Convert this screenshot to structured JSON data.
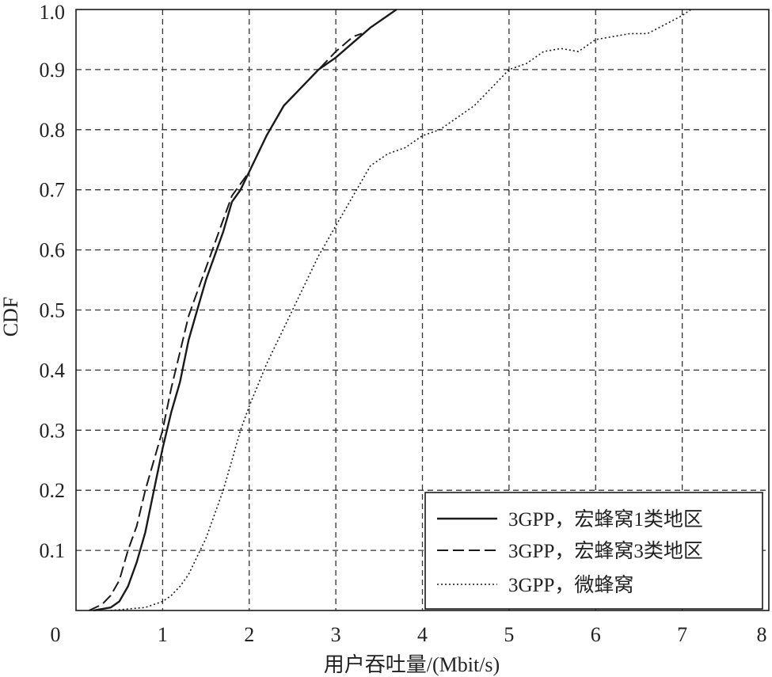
{
  "chart_data": {
    "type": "line",
    "title": "",
    "xlabel": "用户吞吐量/(Mbit/s)",
    "ylabel": "CDF",
    "xlim": [
      0,
      8
    ],
    "ylim": [
      0,
      1
    ],
    "x_ticks": [
      "0",
      "1",
      "2",
      "3",
      "4",
      "5",
      "6",
      "7",
      "8"
    ],
    "y_ticks": [
      "",
      "0.1",
      "0.2",
      "0.3",
      "0.4",
      "0.5",
      "0.6",
      "0.7",
      "0.8",
      "0.9",
      "1.0"
    ],
    "grid": true,
    "legend_position": "bottom-right",
    "series": [
      {
        "name": "3GPP，宏蜂窝1类地区",
        "style": "solid",
        "points": [
          [
            0.2,
            0
          ],
          [
            0.4,
            0.005
          ],
          [
            0.5,
            0.015
          ],
          [
            0.6,
            0.04
          ],
          [
            0.7,
            0.08
          ],
          [
            0.8,
            0.13
          ],
          [
            0.9,
            0.2
          ],
          [
            1.0,
            0.27
          ],
          [
            1.1,
            0.33
          ],
          [
            1.2,
            0.38
          ],
          [
            1.3,
            0.45
          ],
          [
            1.4,
            0.5
          ],
          [
            1.5,
            0.55
          ],
          [
            1.6,
            0.59
          ],
          [
            1.7,
            0.63
          ],
          [
            1.8,
            0.68
          ],
          [
            1.9,
            0.7
          ],
          [
            2.0,
            0.73
          ],
          [
            2.2,
            0.79
          ],
          [
            2.4,
            0.84
          ],
          [
            2.6,
            0.87
          ],
          [
            2.8,
            0.9
          ],
          [
            3.0,
            0.92
          ],
          [
            3.2,
            0.945
          ],
          [
            3.4,
            0.97
          ],
          [
            3.6,
            0.99
          ],
          [
            3.7,
            1.0
          ]
        ]
      },
      {
        "name": "3GPP，宏蜂窝3类地区",
        "style": "dashed",
        "points": [
          [
            0.15,
            0
          ],
          [
            0.3,
            0.01
          ],
          [
            0.4,
            0.025
          ],
          [
            0.5,
            0.05
          ],
          [
            0.6,
            0.1
          ],
          [
            0.7,
            0.14
          ],
          [
            0.8,
            0.2
          ],
          [
            0.9,
            0.25
          ],
          [
            1.0,
            0.3
          ],
          [
            1.1,
            0.37
          ],
          [
            1.2,
            0.43
          ],
          [
            1.3,
            0.49
          ],
          [
            1.4,
            0.53
          ],
          [
            1.5,
            0.57
          ],
          [
            1.6,
            0.61
          ],
          [
            1.7,
            0.65
          ],
          [
            1.8,
            0.69
          ],
          [
            1.9,
            0.71
          ],
          [
            2.0,
            0.73
          ],
          [
            2.2,
            0.79
          ],
          [
            2.4,
            0.84
          ],
          [
            2.6,
            0.87
          ],
          [
            2.8,
            0.9
          ],
          [
            3.0,
            0.93
          ],
          [
            3.2,
            0.955
          ],
          [
            3.3,
            0.96
          ]
        ]
      },
      {
        "name": "3GPP，微蜂窝",
        "style": "dotted",
        "points": [
          [
            0.4,
            0
          ],
          [
            0.8,
            0.005
          ],
          [
            1.0,
            0.015
          ],
          [
            1.1,
            0.025
          ],
          [
            1.2,
            0.04
          ],
          [
            1.3,
            0.06
          ],
          [
            1.4,
            0.09
          ],
          [
            1.5,
            0.12
          ],
          [
            1.6,
            0.16
          ],
          [
            1.7,
            0.2
          ],
          [
            1.8,
            0.25
          ],
          [
            1.9,
            0.3
          ],
          [
            2.0,
            0.34
          ],
          [
            2.2,
            0.41
          ],
          [
            2.4,
            0.47
          ],
          [
            2.6,
            0.53
          ],
          [
            2.8,
            0.59
          ],
          [
            3.0,
            0.64
          ],
          [
            3.2,
            0.69
          ],
          [
            3.4,
            0.74
          ],
          [
            3.6,
            0.76
          ],
          [
            3.8,
            0.77
          ],
          [
            4.0,
            0.79
          ],
          [
            4.2,
            0.8
          ],
          [
            4.4,
            0.82
          ],
          [
            4.6,
            0.84
          ],
          [
            4.8,
            0.87
          ],
          [
            5.0,
            0.9
          ],
          [
            5.2,
            0.91
          ],
          [
            5.4,
            0.93
          ],
          [
            5.6,
            0.935
          ],
          [
            5.8,
            0.93
          ],
          [
            6.0,
            0.95
          ],
          [
            6.2,
            0.955
          ],
          [
            6.4,
            0.96
          ],
          [
            6.6,
            0.96
          ],
          [
            6.8,
            0.975
          ],
          [
            7.0,
            0.99
          ],
          [
            7.1,
            1.0
          ]
        ]
      }
    ]
  }
}
